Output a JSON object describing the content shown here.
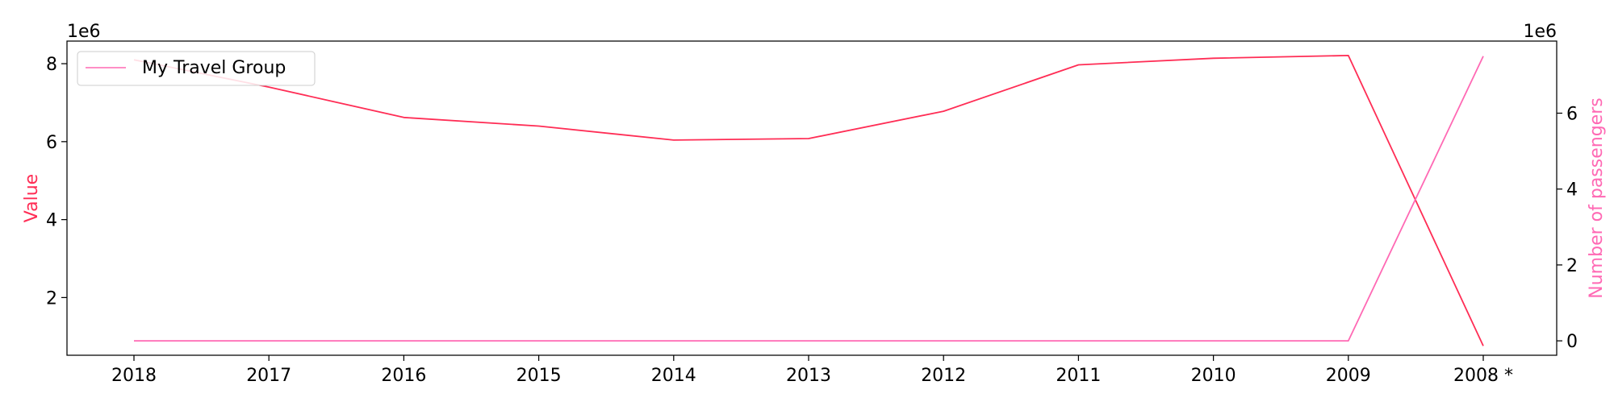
{
  "chart_data": {
    "type": "line",
    "categories": [
      "2018",
      "2017",
      "2016",
      "2015",
      "2014",
      "2013",
      "2012",
      "2011",
      "2010",
      "2009",
      "2008 *"
    ],
    "left_axis": {
      "label": "Value",
      "offset_label": "1e6",
      "ticks": [
        2,
        4,
        6,
        8
      ],
      "ylim": [
        0.52,
        8.58
      ],
      "color": "#ff2d55"
    },
    "right_axis": {
      "label": "Number of passengers",
      "offset_label": "1e6",
      "ticks": [
        0,
        2,
        4,
        6
      ],
      "ylim": [
        -0.38,
        7.9
      ],
      "color": "#ff69b4"
    },
    "series": [
      {
        "axis": "left",
        "color": "#ff2d55",
        "values": [
          8.1,
          7.4,
          6.62,
          6.4,
          6.04,
          6.08,
          6.78,
          7.97,
          8.14,
          8.21,
          0.76
        ]
      },
      {
        "name": "My Travel Group",
        "axis": "right",
        "color": "#ff69b4",
        "values": [
          0,
          0,
          0,
          0,
          0,
          0,
          0,
          0,
          0,
          0,
          7.5
        ]
      }
    ],
    "legend": {
      "position": "top-left"
    },
    "grid": false
  }
}
